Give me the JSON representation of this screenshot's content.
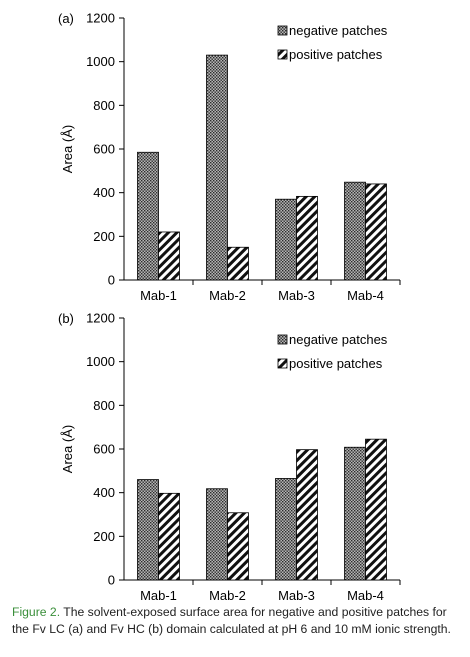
{
  "chart_data": [
    {
      "type": "bar",
      "panel_label": "(a)",
      "categories": [
        "Mab-1",
        "Mab-2",
        "Mab-3",
        "Mab-4"
      ],
      "series": [
        {
          "name": "negative patches",
          "values": [
            585,
            1030,
            370,
            448
          ],
          "pattern": "dots"
        },
        {
          "name": "positive patches",
          "values": [
            220,
            150,
            383,
            440
          ],
          "pattern": "diagonal-stripes"
        }
      ],
      "ylabel": "Area (Å)",
      "ylim": [
        0,
        1200
      ],
      "yticks": [
        0,
        200,
        400,
        600,
        800,
        1000,
        1200
      ],
      "grid": false,
      "legend_position": "top-right"
    },
    {
      "type": "bar",
      "panel_label": "(b)",
      "categories": [
        "Mab-1",
        "Mab-2",
        "Mab-3",
        "Mab-4"
      ],
      "series": [
        {
          "name": "negative patches",
          "values": [
            460,
            418,
            465,
            608
          ],
          "pattern": "dots"
        },
        {
          "name": "positive patches",
          "values": [
            397,
            308,
            597,
            645
          ],
          "pattern": "diagonal-stripes"
        }
      ],
      "ylabel": "Area (Å)",
      "ylim": [
        0,
        1200
      ],
      "yticks": [
        0,
        200,
        400,
        600,
        800,
        1000,
        1200
      ],
      "grid": false,
      "legend_position": "top-right"
    }
  ],
  "caption": {
    "label": "Figure 2.",
    "text": " The solvent-exposed surface area for negative and positive patches for the Fv LC (a) and Fv HC (b) domain calculated at pH 6 and 10 mM ionic strength."
  },
  "colors": {
    "label": "#3a8f3a",
    "axis": "#000000"
  }
}
